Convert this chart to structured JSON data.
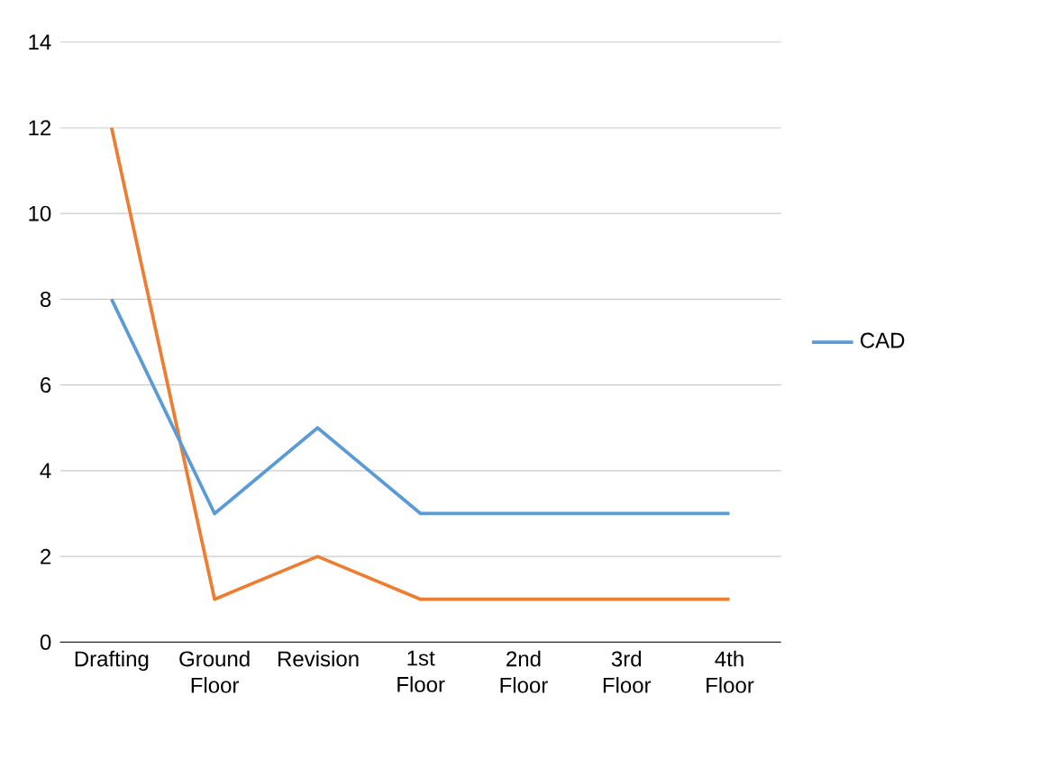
{
  "chart_data": {
    "type": "line",
    "categories": [
      "Drafting",
      "Ground Floor",
      "Revision",
      "1st Floor",
      "2nd Floor",
      "3rd Floor",
      "4th Floor"
    ],
    "series": [
      {
        "color": "#ed7d31",
        "values": [
          12,
          1,
          2,
          1,
          1,
          1,
          1
        ]
      },
      {
        "name": "CAD",
        "color": "#5b9bd5",
        "values": [
          8,
          3,
          5,
          3,
          3,
          3,
          3
        ]
      }
    ],
    "ylim": [
      0,
      14
    ],
    "yticks": [
      0,
      2,
      4,
      6,
      8,
      10,
      12,
      14
    ],
    "grid": "y",
    "legend": "right",
    "marker": "none",
    "line_style": "solid"
  }
}
